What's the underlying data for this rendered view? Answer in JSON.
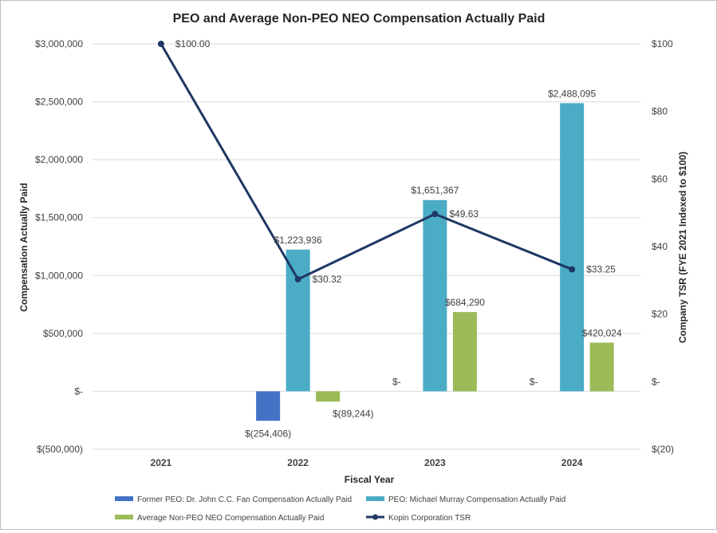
{
  "chart_data": {
    "type": "bar",
    "title": "PEO and Average Non-PEO NEO Compensation Actually Paid",
    "xlabel": "Fiscal Year",
    "ylabel": "Compensation Actually Paid",
    "y2label": "Company TSR (FYE 2021 Indexed to $100)",
    "categories": [
      "2021",
      "2022",
      "2023",
      "2024"
    ],
    "ylim": [
      -500000,
      3000000
    ],
    "y_ticks": [
      -500000,
      0,
      500000,
      1000000,
      1500000,
      2000000,
      2500000,
      3000000
    ],
    "y_tick_labels": [
      "$(500,000)",
      "$-",
      "$500,000",
      "$1,000,000",
      "$1,500,000",
      "$2,000,000",
      "$2,500,000",
      "$3,000,000"
    ],
    "y2lim": [
      -20,
      100
    ],
    "y2_ticks": [
      -20,
      0,
      20,
      40,
      60,
      80,
      100
    ],
    "y2_tick_labels": [
      "$(20)",
      "$-",
      "$20",
      "$40",
      "$60",
      "$80",
      "$100"
    ],
    "grid": true,
    "legend_position": "bottom",
    "series": [
      {
        "name": "Former PEO: Dr. John C.C. Fan Compensation Actually Paid",
        "kind": "bar",
        "color": "#4472c4",
        "values": [
          null,
          -254406,
          null,
          null
        ],
        "labels": [
          "",
          "$(254,406)",
          "",
          ""
        ]
      },
      {
        "name": "PEO: Michael Murray Compensation Actually Paid",
        "kind": "bar",
        "color": "#4bacc6",
        "values": [
          null,
          1223936,
          1651367,
          2488095
        ],
        "labels": [
          "",
          "$1,223,936",
          "$1,651,367",
          "$2,488,095"
        ]
      },
      {
        "name": "Average Non-PEO NEO Compensation Actually Paid",
        "kind": "bar",
        "color": "#9bbb59",
        "values": [
          null,
          -89244,
          684290,
          420024
        ],
        "labels": [
          "",
          "$(89,244)",
          "$684,290",
          "$420,024"
        ]
      },
      {
        "name": "Kopin Corporation TSR",
        "kind": "line",
        "axis": "right",
        "color": "#1f3864",
        "values": [
          100.0,
          30.32,
          49.63,
          33.25
        ],
        "labels": [
          "$100.00",
          "$30.32",
          "$49.63",
          "$33.25"
        ]
      }
    ],
    "zero_labels": [
      {
        "category_index": 2,
        "text": "$-"
      },
      {
        "category_index": 3,
        "text": "$-"
      }
    ]
  }
}
